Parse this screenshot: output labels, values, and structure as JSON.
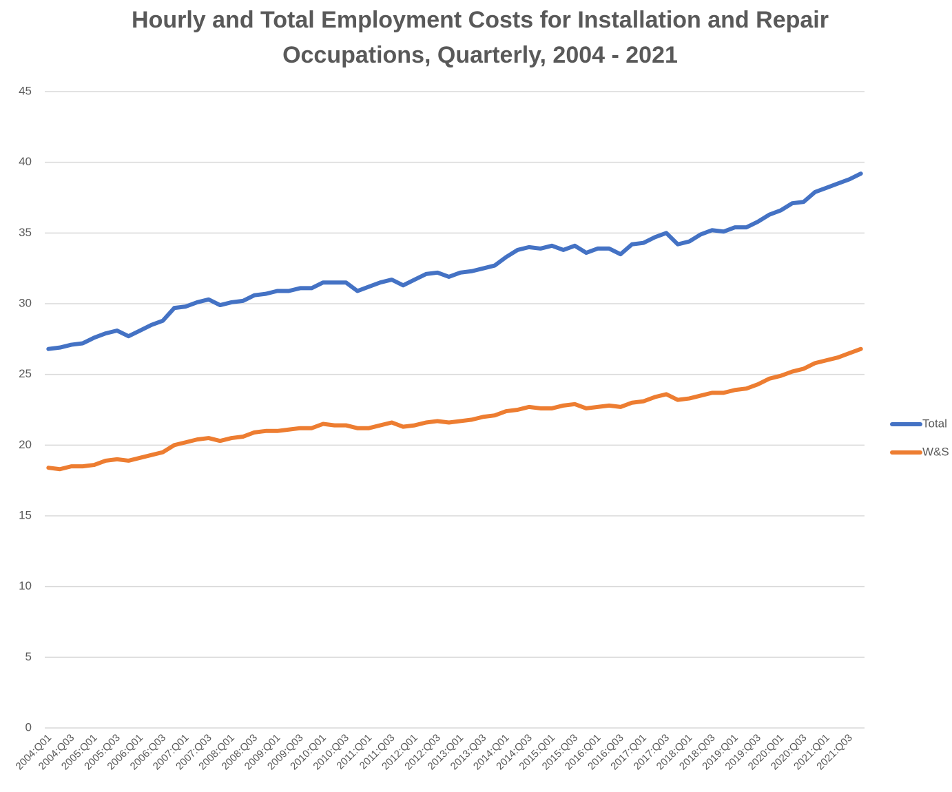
{
  "chart_data": {
    "type": "line",
    "title": [
      "Hourly and Total Employment Costs for Installation and Repair",
      "Occupations, Quarterly, 2004 - 2021"
    ],
    "categories": [
      "2004:Q01",
      null,
      "2004:Q03",
      null,
      "2005:Q01",
      null,
      "2005:Q03",
      null,
      "2006:Q01",
      null,
      "2006:Q03",
      null,
      "2007:Q01",
      null,
      "2007:Q03",
      null,
      "2008:Q01",
      null,
      "2008:Q03",
      null,
      "2009:Q01",
      null,
      "2009:Q03",
      null,
      "2010:Q01",
      null,
      "2010:Q03",
      null,
      "2011:Q01",
      null,
      "2011:Q03",
      null,
      "2012:Q01",
      null,
      "2012:Q03",
      null,
      "2013:Q01",
      null,
      "2013:Q03",
      null,
      "2014:Q01",
      null,
      "2014:Q03",
      null,
      "2015:Q01",
      null,
      "2015:Q03",
      null,
      "2016:Q01",
      null,
      "2016:Q03",
      null,
      "2017:Q01",
      null,
      "2017:Q03",
      null,
      "2018:Q01",
      null,
      "2018:Q03",
      null,
      "2019:Q01",
      null,
      "2019:Q03",
      null,
      "2020:Q01",
      null,
      "2020:Q03",
      null,
      "2021:Q01",
      null,
      "2021:Q03",
      null
    ],
    "series": [
      {
        "name": "Total",
        "color": "#4472c4",
        "values": [
          26.8,
          26.9,
          27.1,
          27.2,
          27.6,
          27.9,
          28.1,
          27.7,
          28.1,
          28.5,
          28.8,
          29.7,
          29.8,
          30.1,
          30.3,
          29.9,
          30.1,
          30.2,
          30.6,
          30.7,
          30.9,
          30.9,
          31.1,
          31.1,
          31.5,
          31.5,
          31.5,
          30.9,
          31.2,
          31.5,
          31.7,
          31.3,
          31.7,
          32.1,
          32.2,
          31.9,
          32.2,
          32.3,
          32.5,
          32.7,
          33.3,
          33.8,
          34.0,
          33.9,
          34.1,
          33.8,
          34.1,
          33.6,
          33.9,
          33.9,
          33.5,
          34.2,
          34.3,
          34.7,
          35.0,
          34.2,
          34.4,
          34.9,
          35.2,
          35.1,
          35.4,
          35.4,
          35.8,
          36.3,
          36.6,
          37.1,
          37.2,
          37.9,
          38.2,
          38.5,
          38.8,
          39.2
        ]
      },
      {
        "name": "W&S",
        "color": "#ed7d31",
        "values": [
          18.4,
          18.3,
          18.5,
          18.5,
          18.6,
          18.9,
          19.0,
          18.9,
          19.1,
          19.3,
          19.5,
          20.0,
          20.2,
          20.4,
          20.5,
          20.3,
          20.5,
          20.6,
          20.9,
          21.0,
          21.0,
          21.1,
          21.2,
          21.2,
          21.5,
          21.4,
          21.4,
          21.2,
          21.2,
          21.4,
          21.6,
          21.3,
          21.4,
          21.6,
          21.7,
          21.6,
          21.7,
          21.8,
          22.0,
          22.1,
          22.4,
          22.5,
          22.7,
          22.6,
          22.6,
          22.8,
          22.9,
          22.6,
          22.7,
          22.8,
          22.7,
          23.0,
          23.1,
          23.4,
          23.6,
          23.2,
          23.3,
          23.5,
          23.7,
          23.7,
          23.9,
          24.0,
          24.3,
          24.7,
          24.9,
          25.2,
          25.4,
          25.8,
          26.0,
          26.2,
          26.5,
          26.8
        ]
      }
    ],
    "ylim": [
      0,
      45
    ],
    "yticks": [
      0,
      5,
      10,
      15,
      20,
      25,
      30,
      35,
      40,
      45
    ],
    "grid": true,
    "legend": "right"
  }
}
